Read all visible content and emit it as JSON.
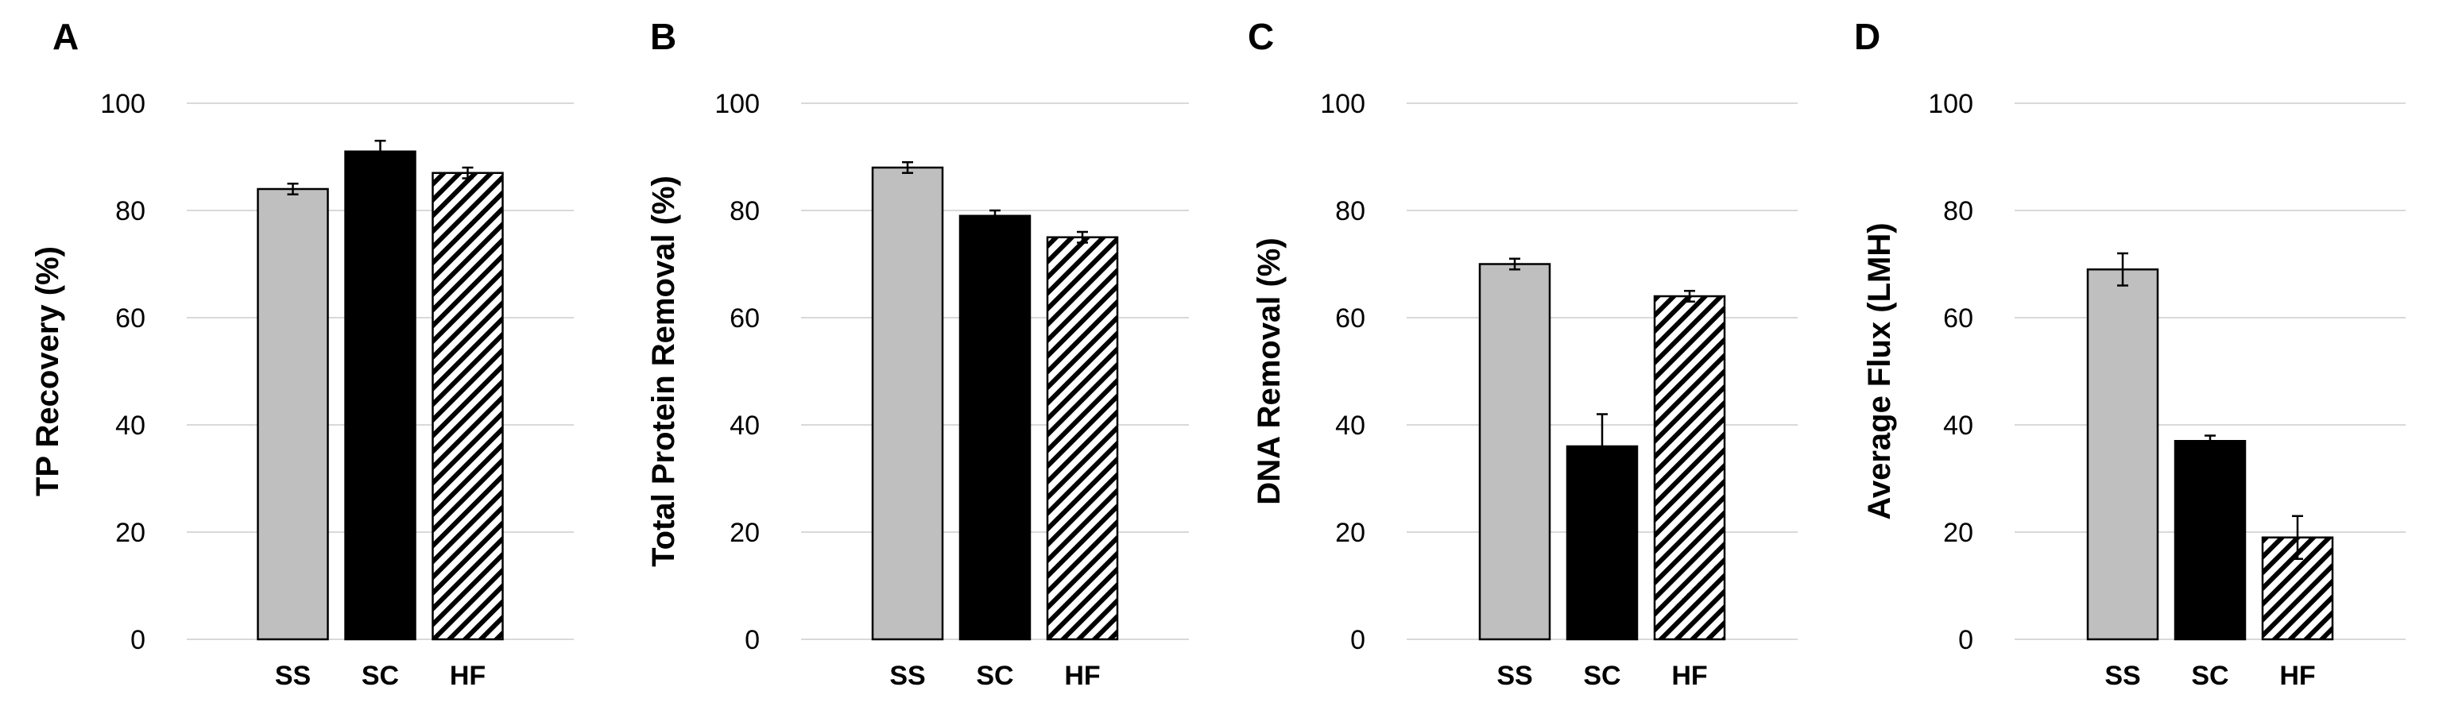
{
  "chart_data": [
    {
      "type": "bar",
      "panel": "A",
      "title": "",
      "xlabel": "",
      "ylabel": "TP Recovery (%)",
      "ylim": [
        0,
        100
      ],
      "yticks": [
        0,
        20,
        40,
        60,
        80,
        100
      ],
      "categories": [
        "SS",
        "SC",
        "HF"
      ],
      "values": [
        84,
        91,
        87
      ],
      "errors": [
        1,
        2,
        1
      ],
      "fills": [
        "gray",
        "black",
        "hatched"
      ],
      "grid": true
    },
    {
      "type": "bar",
      "panel": "B",
      "title": "",
      "xlabel": "",
      "ylabel": "Total Protein Removal (%)",
      "ylim": [
        0,
        100
      ],
      "yticks": [
        0,
        20,
        40,
        60,
        80,
        100
      ],
      "categories": [
        "SS",
        "SC",
        "HF"
      ],
      "values": [
        88,
        79,
        75
      ],
      "errors": [
        1,
        1,
        1
      ],
      "fills": [
        "gray",
        "black",
        "hatched"
      ],
      "grid": true
    },
    {
      "type": "bar",
      "panel": "C",
      "title": "",
      "xlabel": "",
      "ylabel": "DNA Removal (%)",
      "ylim": [
        0,
        100
      ],
      "yticks": [
        0,
        20,
        40,
        60,
        80,
        100
      ],
      "categories": [
        "SS",
        "SC",
        "HF"
      ],
      "values": [
        70,
        36,
        64
      ],
      "errors": [
        1,
        6,
        1
      ],
      "fills": [
        "gray",
        "black",
        "hatched"
      ],
      "grid": true
    },
    {
      "type": "bar",
      "panel": "D",
      "title": "",
      "xlabel": "",
      "ylabel": "Average Flux (LMH)",
      "ylim": [
        0,
        100
      ],
      "yticks": [
        0,
        20,
        40,
        60,
        80,
        100
      ],
      "categories": [
        "SS",
        "SC",
        "HF"
      ],
      "values": [
        69,
        37,
        19
      ],
      "errors": [
        3,
        1,
        4
      ],
      "fills": [
        "gray",
        "black",
        "hatched"
      ],
      "grid": true
    }
  ],
  "colors": {
    "gray_bar": "#bfbfbf",
    "black_bar": "#000000",
    "hatch_stroke": "#000000",
    "hatch_bg": "#ffffff",
    "gridline": "#d9d9d9",
    "text": "#000000"
  }
}
